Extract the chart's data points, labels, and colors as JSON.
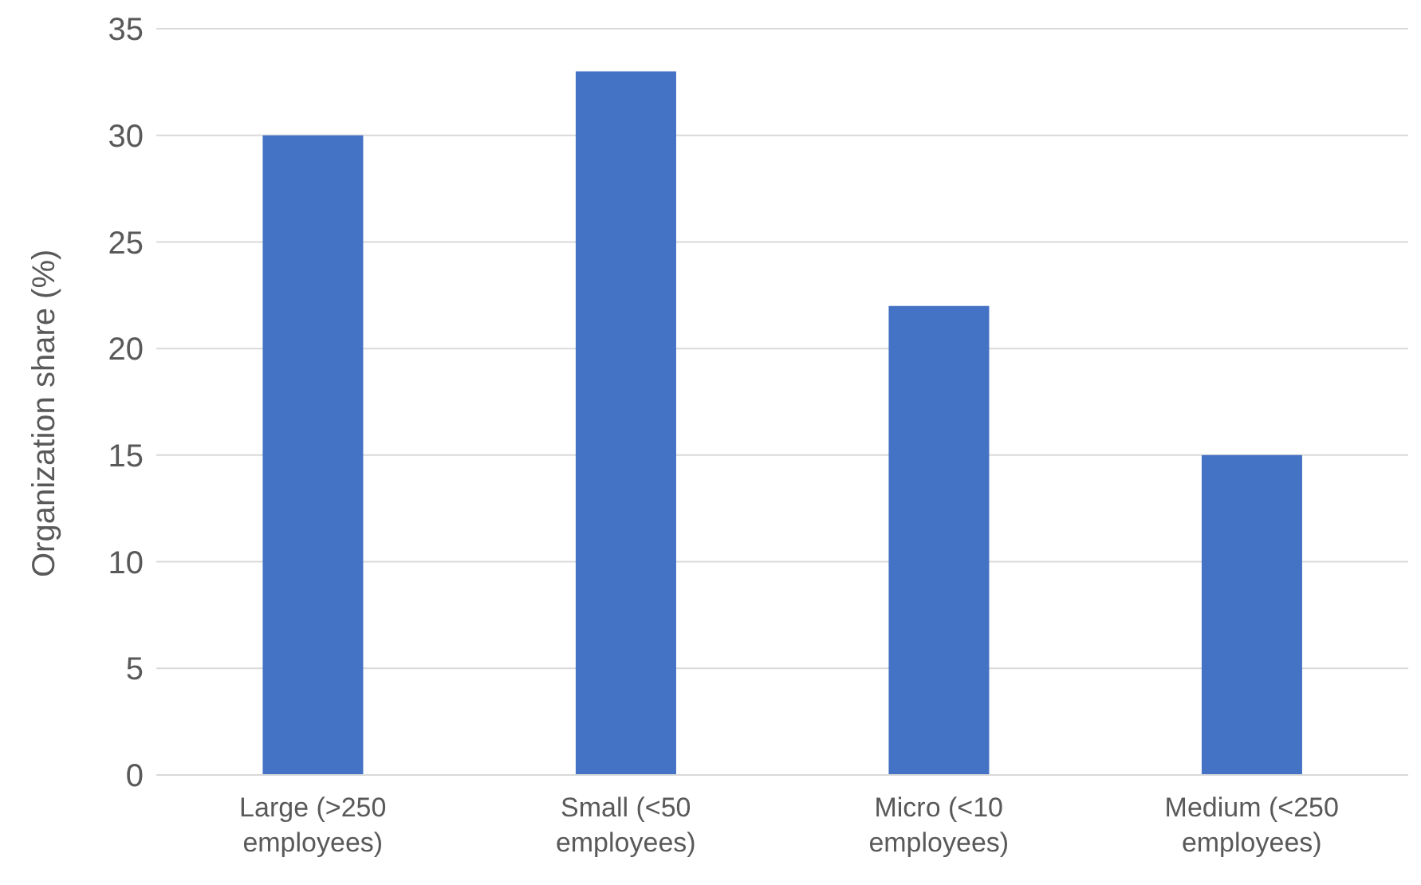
{
  "chart_data": {
    "type": "bar",
    "ylabel": "Organization share (%)",
    "categories": [
      "Large (>250 employees)",
      "Small (<50 employees)",
      "Micro (<10 employees)",
      "Medium (<250 employees)"
    ],
    "values": [
      30,
      33,
      22,
      15
    ],
    "color": "#4472c4",
    "ylim": [
      0,
      35
    ],
    "yticks": [
      0,
      5,
      10,
      15,
      20,
      25,
      30,
      35
    ],
    "grid": "y"
  }
}
